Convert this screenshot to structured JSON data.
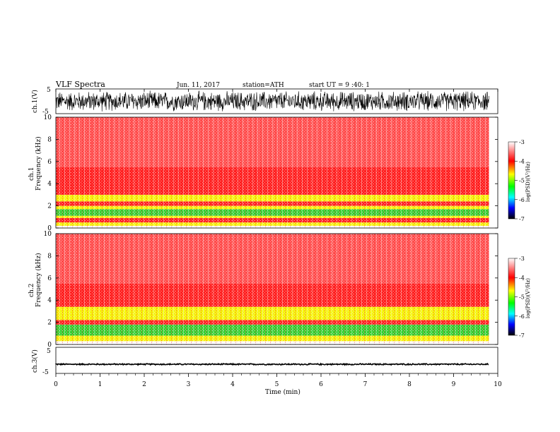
{
  "header": {
    "title": "VLF Spectra",
    "date": "Jun. 11, 2017",
    "station": "station=ATH",
    "start_ut": "start UT =  9 :40: 1"
  },
  "colors": {
    "red": "#ff2020",
    "yellow": "#f5f500",
    "green": "#30d030",
    "white": "#ffffff",
    "waveform": "#000000"
  },
  "chart_data": [
    {
      "type": "line",
      "panel": "ch1-waveform",
      "ylabel": "ch.1(V)",
      "yticks": [
        "5",
        "-5"
      ],
      "ylim": [
        -5,
        5
      ],
      "xlim": [
        0,
        10
      ],
      "data_end_min": 9.8,
      "amplitude_v": 4.5
    },
    {
      "type": "heatmap",
      "panel": "ch1-spectrogram",
      "ylabel_line1": "ch.1",
      "ylabel_line2": "Frequency (kHz)",
      "yticks": [
        "0",
        "2",
        "4",
        "6",
        "8",
        "10"
      ],
      "ylim": [
        0,
        10
      ],
      "xlim": [
        0,
        10
      ],
      "data_end_min": 9.8,
      "bands_khz": [
        {
          "from": 0.0,
          "to": 0.2,
          "level": "white"
        },
        {
          "from": 0.2,
          "to": 0.5,
          "level": "yellow"
        },
        {
          "from": 0.5,
          "to": 0.9,
          "level": "red"
        },
        {
          "from": 0.9,
          "to": 1.1,
          "level": "yellow"
        },
        {
          "from": 1.1,
          "to": 1.7,
          "level": "green"
        },
        {
          "from": 1.7,
          "to": 2.0,
          "level": "yellow"
        },
        {
          "from": 2.0,
          "to": 2.4,
          "level": "red"
        },
        {
          "from": 2.4,
          "to": 3.0,
          "level": "yellow"
        },
        {
          "from": 3.0,
          "to": 5.5,
          "level": "red"
        },
        {
          "from": 5.5,
          "to": 10.0,
          "level": "light-red"
        }
      ],
      "colorbar": {
        "label": "log(PSD)(V²/Hz)",
        "ticks": [
          "-3",
          "-4",
          "-5",
          "-6",
          "-7"
        ],
        "range": [
          -7,
          -3
        ]
      }
    },
    {
      "type": "heatmap",
      "panel": "ch2-spectrogram",
      "ylabel_line1": "ch.2",
      "ylabel_line2": "Frequency (kHz)",
      "yticks": [
        "0",
        "2",
        "4",
        "6",
        "8",
        "10"
      ],
      "ylim": [
        0,
        10
      ],
      "xlim": [
        0,
        10
      ],
      "data_end_min": 9.8,
      "bands_khz": [
        {
          "from": 0.0,
          "to": 0.3,
          "level": "white"
        },
        {
          "from": 0.3,
          "to": 0.8,
          "level": "yellow"
        },
        {
          "from": 0.8,
          "to": 1.8,
          "level": "green"
        },
        {
          "from": 1.8,
          "to": 2.2,
          "level": "red"
        },
        {
          "from": 2.2,
          "to": 3.4,
          "level": "yellow"
        },
        {
          "from": 3.4,
          "to": 5.5,
          "level": "red"
        },
        {
          "from": 5.5,
          "to": 10.0,
          "level": "light-red"
        }
      ],
      "colorbar": {
        "label": "log(PSD)(V²/Hz)",
        "ticks": [
          "-3",
          "-4",
          "-5",
          "-6",
          "-7"
        ],
        "range": [
          -7,
          -3
        ]
      }
    },
    {
      "type": "line",
      "panel": "ch3-waveform",
      "ylabel": "ch.3(V)",
      "yticks": [
        "5",
        "-5"
      ],
      "ylim": [
        -5,
        5
      ],
      "xlim": [
        0,
        10
      ],
      "data_end_min": 9.8,
      "baseline_v": -1.5,
      "amplitude_v": 0.3,
      "xlabel": "Time (min)",
      "xticks": [
        "0",
        "1",
        "2",
        "3",
        "4",
        "5",
        "6",
        "7",
        "8",
        "9",
        "10"
      ]
    }
  ]
}
